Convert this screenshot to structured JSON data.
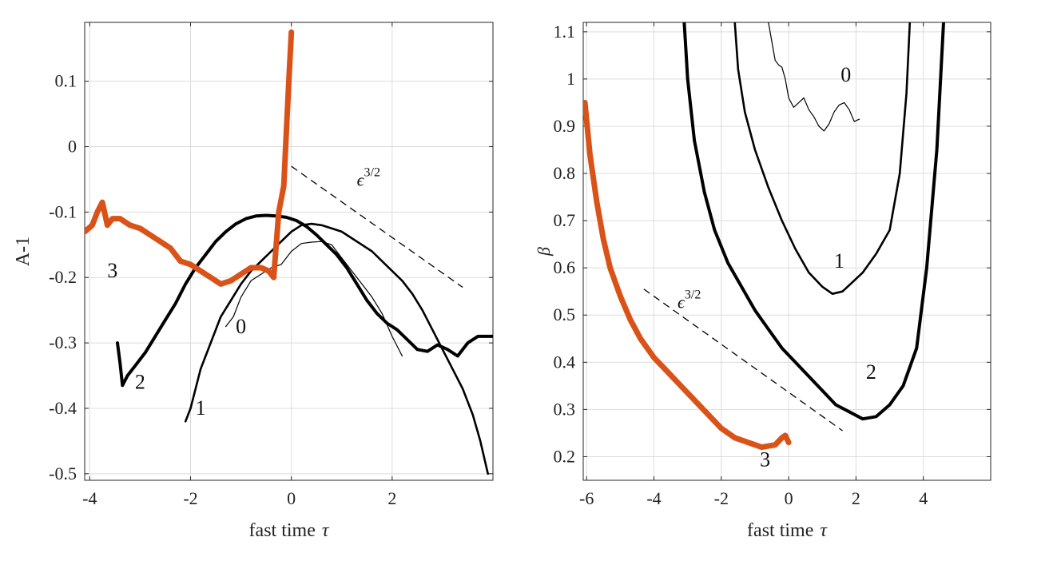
{
  "chart_data": [
    {
      "type": "line",
      "xlabel": "fast time",
      "xlabel_symbol": "τ",
      "ylabel": "A-1",
      "xlim": [
        -4.1,
        4.0
      ],
      "ylim": [
        -0.51,
        0.19
      ],
      "xticks": [
        -4,
        -2,
        0,
        2
      ],
      "xtick_labels": [
        "-4",
        "-2",
        "0",
        "2"
      ],
      "yticks": [
        -0.5,
        -0.4,
        -0.3,
        -0.2,
        -0.1,
        0,
        0.1
      ],
      "ytick_labels": [
        "-0.5",
        "-0.4",
        "-0.3",
        "-0.2",
        "-0.1",
        "0",
        "0.1"
      ],
      "grid": true,
      "series": [
        {
          "name": "0",
          "color": "#000000",
          "width": 1.2,
          "x": [
            -1.3,
            -1.15,
            -1.0,
            -0.8,
            -0.6,
            -0.4,
            -0.2,
            0.0,
            0.2,
            0.4,
            0.6,
            0.8,
            1.0,
            1.2,
            1.4,
            1.6,
            1.8,
            2.0,
            2.2
          ],
          "y": [
            -0.275,
            -0.26,
            -0.23,
            -0.205,
            -0.195,
            -0.185,
            -0.18,
            -0.16,
            -0.148,
            -0.146,
            -0.145,
            -0.15,
            -0.17,
            -0.19,
            -0.21,
            -0.23,
            -0.255,
            -0.29,
            -0.32
          ]
        },
        {
          "name": "1",
          "color": "#000000",
          "width": 2.6,
          "x": [
            -2.1,
            -2.0,
            -1.9,
            -1.8,
            -1.6,
            -1.4,
            -1.2,
            -1.0,
            -0.8,
            -0.6,
            -0.4,
            -0.2,
            0.0,
            0.2,
            0.4,
            0.6,
            0.8,
            1.0,
            1.2,
            1.4,
            1.6,
            1.8,
            2.0,
            2.2,
            2.4,
            2.6,
            2.8,
            3.0,
            3.2,
            3.4,
            3.6,
            3.75,
            3.9
          ],
          "y": [
            -0.42,
            -0.4,
            -0.37,
            -0.34,
            -0.3,
            -0.26,
            -0.235,
            -0.21,
            -0.19,
            -0.175,
            -0.16,
            -0.145,
            -0.13,
            -0.12,
            -0.118,
            -0.12,
            -0.125,
            -0.13,
            -0.14,
            -0.15,
            -0.16,
            -0.175,
            -0.19,
            -0.205,
            -0.225,
            -0.25,
            -0.28,
            -0.31,
            -0.34,
            -0.37,
            -0.41,
            -0.45,
            -0.5
          ]
        },
        {
          "name": "2",
          "color": "#000000",
          "width": 4.0,
          "x": [
            -3.45,
            -3.4,
            -3.35,
            -3.25,
            -3.1,
            -2.9,
            -2.7,
            -2.5,
            -2.3,
            -2.1,
            -1.9,
            -1.7,
            -1.5,
            -1.3,
            -1.1,
            -0.9,
            -0.7,
            -0.5,
            -0.3,
            -0.1,
            0.1,
            0.3,
            0.5,
            0.7,
            0.9,
            1.1,
            1.3,
            1.5,
            1.7,
            1.9,
            2.1,
            2.3,
            2.5,
            2.7,
            2.9,
            3.1,
            3.3,
            3.5,
            3.7,
            4.0
          ],
          "y": [
            -0.3,
            -0.33,
            -0.365,
            -0.35,
            -0.335,
            -0.315,
            -0.29,
            -0.265,
            -0.24,
            -0.21,
            -0.185,
            -0.165,
            -0.145,
            -0.13,
            -0.118,
            -0.11,
            -0.106,
            -0.105,
            -0.106,
            -0.108,
            -0.113,
            -0.122,
            -0.135,
            -0.15,
            -0.165,
            -0.185,
            -0.21,
            -0.235,
            -0.255,
            -0.27,
            -0.28,
            -0.295,
            -0.31,
            -0.313,
            -0.303,
            -0.31,
            -0.32,
            -0.3,
            -0.29,
            -0.29
          ]
        },
        {
          "name": "3",
          "color": "#d95319",
          "width": 7.0,
          "x": [
            -4.1,
            -3.95,
            -3.85,
            -3.75,
            -3.65,
            -3.55,
            -3.4,
            -3.2,
            -3.0,
            -2.8,
            -2.6,
            -2.4,
            -2.2,
            -2.0,
            -1.8,
            -1.6,
            -1.4,
            -1.2,
            -1.0,
            -0.8,
            -0.6,
            -0.45,
            -0.35,
            -0.25,
            -0.15,
            -0.1,
            -0.05,
            0.0
          ],
          "y": [
            -0.13,
            -0.12,
            -0.1,
            -0.085,
            -0.12,
            -0.11,
            -0.11,
            -0.12,
            -0.125,
            -0.135,
            -0.145,
            -0.155,
            -0.175,
            -0.18,
            -0.19,
            -0.2,
            -0.21,
            -0.205,
            -0.195,
            -0.185,
            -0.185,
            -0.19,
            -0.2,
            -0.1,
            -0.06,
            0.02,
            0.1,
            0.175
          ]
        }
      ],
      "curve_labels": [
        {
          "text": "3",
          "x": -3.55,
          "y": -0.2
        },
        {
          "text": "2",
          "x": -3.0,
          "y": -0.37
        },
        {
          "text": "1",
          "x": -1.8,
          "y": -0.41
        },
        {
          "text": "0",
          "x": -1.0,
          "y": -0.285
        }
      ],
      "reference_line": {
        "label": "ϵ",
        "exponent": "3/2",
        "x": [
          0.0,
          3.4
        ],
        "y": [
          -0.03,
          -0.215
        ],
        "label_x": 1.3,
        "label_y": -0.06
      }
    },
    {
      "type": "line",
      "xlabel": "fast time",
      "xlabel_symbol": "τ",
      "ylabel": "β",
      "xlim": [
        -6.1,
        6.0
      ],
      "ylim": [
        0.15,
        1.12
      ],
      "xticks": [
        -6,
        -4,
        -2,
        0,
        2,
        4
      ],
      "xtick_labels": [
        "-6",
        "-4",
        "-2",
        "0",
        "2",
        "4"
      ],
      "yticks": [
        0.2,
        0.3,
        0.4,
        0.5,
        0.6,
        0.7,
        0.8,
        0.9,
        1,
        1.1
      ],
      "ytick_labels": [
        "0.2",
        "0.3",
        "0.4",
        "0.5",
        "0.6",
        "0.7",
        "0.8",
        "0.9",
        "1",
        "1.1"
      ],
      "grid": true,
      "series": [
        {
          "name": "0",
          "color": "#000000",
          "width": 1.2,
          "x": [
            -0.6,
            -0.5,
            -0.4,
            -0.3,
            -0.2,
            -0.1,
            0.0,
            0.15,
            0.3,
            0.45,
            0.6,
            0.75,
            0.9,
            1.05,
            1.2,
            1.35,
            1.5,
            1.65,
            1.8,
            1.95,
            2.1
          ],
          "y": [
            1.12,
            1.08,
            1.04,
            1.03,
            1.025,
            1.0,
            0.96,
            0.94,
            0.95,
            0.96,
            0.935,
            0.92,
            0.9,
            0.89,
            0.905,
            0.93,
            0.945,
            0.95,
            0.935,
            0.91,
            0.915
          ]
        },
        {
          "name": "1",
          "color": "#000000",
          "width": 2.6,
          "x": [
            -1.6,
            -1.5,
            -1.3,
            -1.0,
            -0.6,
            -0.2,
            0.2,
            0.6,
            1.0,
            1.3,
            1.6,
            1.9,
            2.2,
            2.6,
            3.0,
            3.3,
            3.5,
            3.6
          ],
          "y": [
            1.12,
            1.02,
            0.93,
            0.85,
            0.77,
            0.7,
            0.64,
            0.59,
            0.56,
            0.545,
            0.55,
            0.57,
            0.59,
            0.63,
            0.68,
            0.8,
            0.97,
            1.12
          ]
        },
        {
          "name": "2",
          "color": "#000000",
          "width": 4.0,
          "x": [
            -3.1,
            -3.0,
            -2.8,
            -2.5,
            -2.2,
            -1.8,
            -1.4,
            -1.0,
            -0.6,
            -0.2,
            0.2,
            0.6,
            1.0,
            1.4,
            1.8,
            2.2,
            2.6,
            3.0,
            3.4,
            3.8,
            4.1,
            4.4,
            4.6
          ],
          "y": [
            1.12,
            1.0,
            0.87,
            0.76,
            0.68,
            0.61,
            0.56,
            0.51,
            0.47,
            0.43,
            0.4,
            0.37,
            0.34,
            0.31,
            0.295,
            0.28,
            0.285,
            0.31,
            0.35,
            0.43,
            0.6,
            0.85,
            1.12
          ]
        },
        {
          "name": "3",
          "color": "#d95319",
          "width": 7.0,
          "x": [
            -6.05,
            -5.9,
            -5.7,
            -5.5,
            -5.3,
            -5.0,
            -4.7,
            -4.4,
            -4.0,
            -3.6,
            -3.2,
            -2.8,
            -2.4,
            -2.0,
            -1.6,
            -1.2,
            -0.8,
            -0.4,
            -0.2,
            -0.1,
            0.0
          ],
          "y": [
            0.95,
            0.84,
            0.74,
            0.66,
            0.6,
            0.54,
            0.49,
            0.45,
            0.41,
            0.38,
            0.35,
            0.32,
            0.29,
            0.26,
            0.24,
            0.23,
            0.22,
            0.225,
            0.24,
            0.245,
            0.23
          ]
        }
      ],
      "curve_labels": [
        {
          "text": "0",
          "x": 1.7,
          "y": 0.995
        },
        {
          "text": "1",
          "x": 1.5,
          "y": 0.6
        },
        {
          "text": "2",
          "x": 2.45,
          "y": 0.365
        },
        {
          "text": "3",
          "x": -0.7,
          "y": 0.18
        }
      ],
      "reference_line": {
        "label": "ϵ",
        "exponent": "3/2",
        "x": [
          -4.3,
          1.6
        ],
        "y": [
          0.555,
          0.255
        ],
        "label_x": -3.3,
        "label_y": 0.515
      }
    }
  ]
}
